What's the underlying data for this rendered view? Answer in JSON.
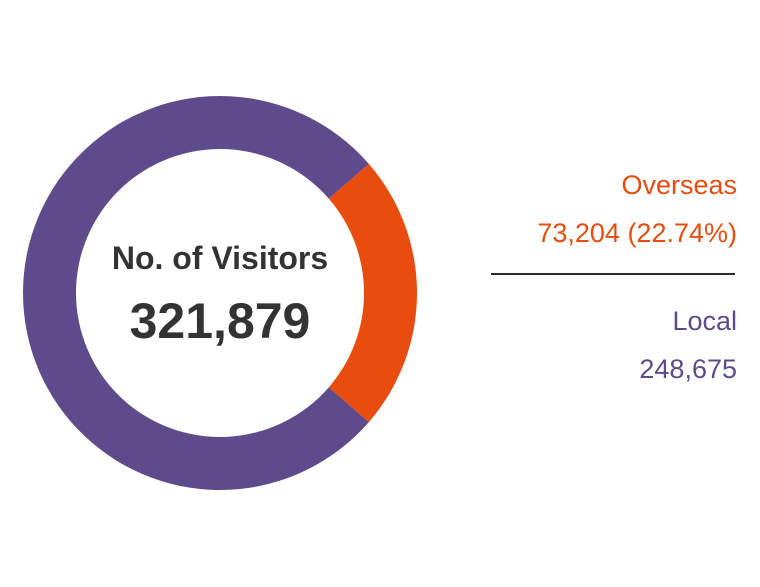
{
  "center": {
    "title": "No. of Visitors",
    "value": "321,879"
  },
  "legend": {
    "overseas": {
      "label": "Overseas",
      "value": "73,204 (22.74%)"
    },
    "local": {
      "label": "Local",
      "value": "248,675"
    }
  },
  "colors": {
    "overseas": "#E84C0E",
    "local": "#5E4B8B",
    "text": "#333333"
  },
  "chart_data": {
    "type": "pie",
    "title": "No. of Visitors",
    "total": 321879,
    "categories": [
      "Overseas",
      "Local"
    ],
    "values": [
      73204,
      248675
    ],
    "percent": [
      22.74,
      77.26
    ]
  }
}
